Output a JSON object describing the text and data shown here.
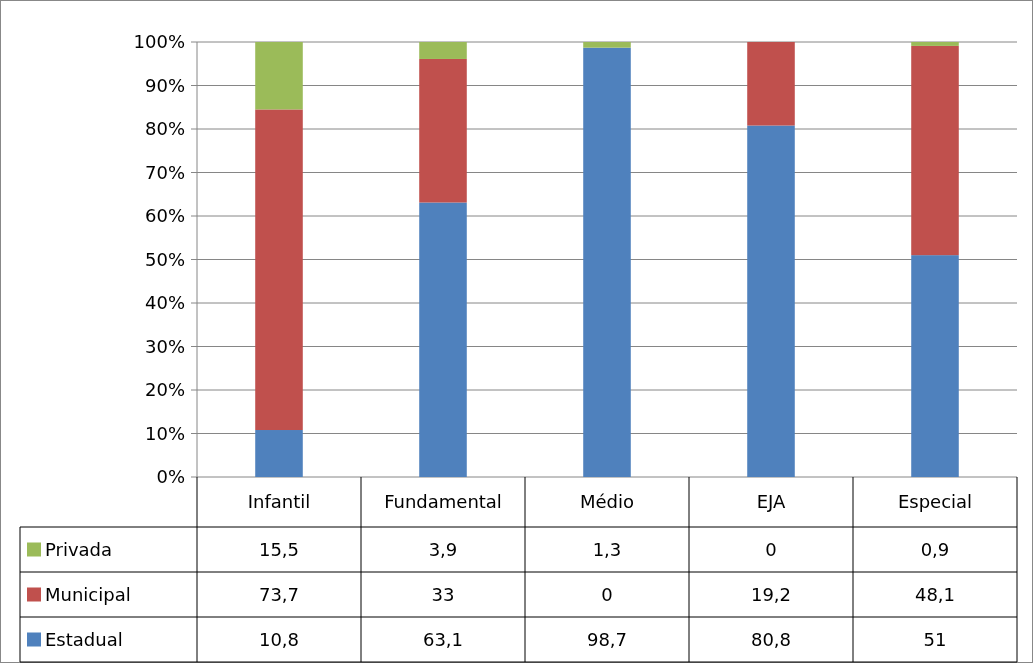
{
  "chart_data": {
    "type": "bar",
    "stacked": true,
    "categories": [
      "Infantil",
      "Fundamental",
      "Médio",
      "EJA",
      "Especial"
    ],
    "series": [
      {
        "name": "Estadual",
        "color": "#4f81bd",
        "values": [
          10.8,
          63.1,
          98.7,
          80.8,
          51
        ],
        "value_labels": [
          "10,8",
          "63,1",
          "98,7",
          "80,8",
          "51"
        ]
      },
      {
        "name": "Municipal",
        "color": "#c0504d",
        "values": [
          73.7,
          33,
          0,
          19.2,
          48.1
        ],
        "value_labels": [
          "73,7",
          "33",
          "0",
          "19,2",
          "48,1"
        ]
      },
      {
        "name": "Privada",
        "color": "#9bbb59",
        "values": [
          15.5,
          3.9,
          1.3,
          0,
          0.9
        ],
        "value_labels": [
          "15,5",
          "3,9",
          "1,3",
          "0",
          "0,9"
        ]
      }
    ],
    "ylim": [
      0,
      100
    ],
    "yticks": [
      {
        "value": 0,
        "label": "0%"
      },
      {
        "value": 10,
        "label": "10%"
      },
      {
        "value": 20,
        "label": "20%"
      },
      {
        "value": 30,
        "label": "30%"
      },
      {
        "value": 40,
        "label": "40%"
      },
      {
        "value": 50,
        "label": "50%"
      },
      {
        "value": 60,
        "label": "60%"
      },
      {
        "value": 70,
        "label": "70%"
      },
      {
        "value": 80,
        "label": "80%"
      },
      {
        "value": 90,
        "label": "90%"
      },
      {
        "value": 100,
        "label": "100%"
      }
    ],
    "grid": "y",
    "legend": "bottom"
  }
}
